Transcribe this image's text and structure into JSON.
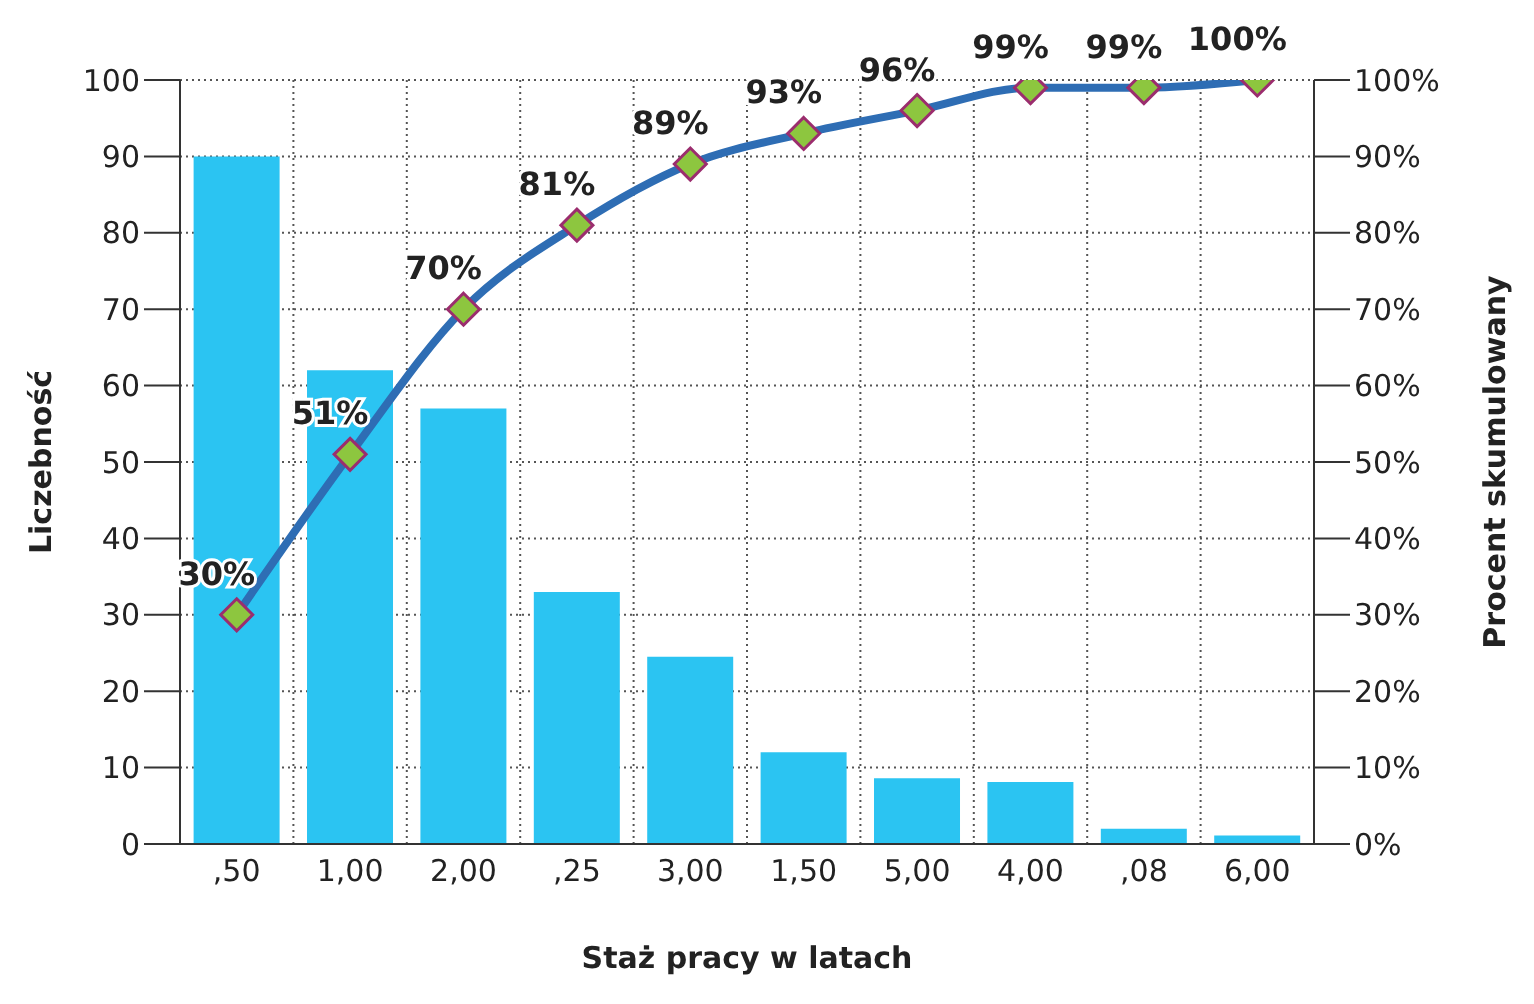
{
  "chart_data": {
    "type": "bar",
    "xlabel": "Staż pracy w latach",
    "ylabel": "Liczebność",
    "y2label": "Procent skumulowany",
    "categories": [
      ",50",
      "1,00",
      "2,00",
      ",25",
      "3,00",
      "1,50",
      "5,00",
      "4,00",
      ",08",
      "6,00"
    ],
    "series": [
      {
        "color": "#2bc4f2",
        "values": [
          90,
          62,
          57,
          33,
          24.5,
          12,
          8.6,
          8.1,
          2,
          1.1
        ]
      },
      {
        "type": "line",
        "axis": "y2",
        "color": "#2e6db4",
        "marker": "diamond",
        "values": [
          30,
          51,
          70,
          81,
          89,
          93,
          96,
          99,
          99,
          100
        ],
        "value_labels": [
          "30%",
          "51%",
          "70%",
          "81%",
          "89%",
          "93%",
          "96%",
          "99%",
          "99%",
          "100%"
        ]
      }
    ],
    "ylim": [
      0,
      100
    ],
    "yticks": [
      0,
      10,
      20,
      30,
      40,
      50,
      60,
      70,
      80,
      90,
      100
    ],
    "y2lim": [
      0,
      100
    ],
    "y2ticks": [
      {
        "value": 0,
        "label": "0%"
      },
      {
        "value": 10,
        "label": "10%"
      },
      {
        "value": 20,
        "label": "20%"
      },
      {
        "value": 30,
        "label": "30%"
      },
      {
        "value": 40,
        "label": "40%"
      },
      {
        "value": 50,
        "label": "50%"
      },
      {
        "value": 60,
        "label": "60%"
      },
      {
        "value": 70,
        "label": "70%"
      },
      {
        "value": 80,
        "label": "80%"
      },
      {
        "value": 90,
        "label": "90%"
      },
      {
        "value": 100,
        "label": "100%"
      }
    ],
    "grid": true
  }
}
